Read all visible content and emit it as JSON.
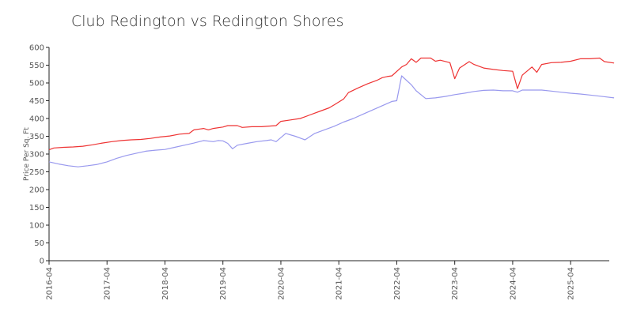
{
  "chart_data": {
    "type": "line",
    "title": "Club Redington vs Redington Shores",
    "xlabel": "",
    "ylabel": "Price Per Sq. Ft",
    "ylim": [
      0,
      600
    ],
    "yticks": [
      0,
      50,
      100,
      150,
      200,
      250,
      300,
      350,
      400,
      450,
      500,
      550,
      600
    ],
    "xlim": [
      "2016-04",
      "2025-12"
    ],
    "xticks": [
      "2016-04",
      "2017-04",
      "2018-04",
      "2019-04",
      "2020-04",
      "2021-04",
      "2022-04",
      "2023-04",
      "2024-04",
      "2025-04"
    ],
    "grid": false,
    "legend": "none",
    "series": [
      {
        "color": "#ee3333",
        "points": [
          [
            "2016-04",
            312
          ],
          [
            "2016-05",
            317
          ],
          [
            "2016-07",
            319
          ],
          [
            "2016-09",
            320
          ],
          [
            "2016-11",
            322
          ],
          [
            "2017-01",
            326
          ],
          [
            "2017-03",
            331
          ],
          [
            "2017-05",
            335
          ],
          [
            "2017-07",
            338
          ],
          [
            "2017-09",
            340
          ],
          [
            "2017-11",
            341
          ],
          [
            "2018-01",
            344
          ],
          [
            "2018-03",
            348
          ],
          [
            "2018-05",
            351
          ],
          [
            "2018-07",
            356
          ],
          [
            "2018-09",
            358
          ],
          [
            "2018-10",
            368
          ],
          [
            "2018-12",
            372
          ],
          [
            "2019-01",
            368
          ],
          [
            "2019-02",
            372
          ],
          [
            "2019-04",
            376
          ],
          [
            "2019-05",
            380
          ],
          [
            "2019-07",
            380
          ],
          [
            "2019-08",
            375
          ],
          [
            "2019-10",
            377
          ],
          [
            "2019-12",
            377
          ],
          [
            "2020-01",
            378
          ],
          [
            "2020-03",
            380
          ],
          [
            "2020-04",
            392
          ],
          [
            "2020-06",
            396
          ],
          [
            "2020-08",
            400
          ],
          [
            "2020-09",
            405
          ],
          [
            "2020-10",
            410
          ],
          [
            "2020-12",
            420
          ],
          [
            "2021-02",
            430
          ],
          [
            "2021-03",
            438
          ],
          [
            "2021-05",
            455
          ],
          [
            "2021-06",
            473
          ],
          [
            "2021-08",
            486
          ],
          [
            "2021-10",
            498
          ],
          [
            "2021-12",
            508
          ],
          [
            "2022-01",
            515
          ],
          [
            "2022-02",
            518
          ],
          [
            "2022-03",
            520
          ],
          [
            "2022-05",
            545
          ],
          [
            "2022-06",
            552
          ],
          [
            "2022-07",
            568
          ],
          [
            "2022-08",
            558
          ],
          [
            "2022-09",
            570
          ],
          [
            "2022-11",
            570
          ],
          [
            "2022-12",
            561
          ],
          [
            "2023-01",
            564
          ],
          [
            "2023-03",
            557
          ],
          [
            "2023-04",
            512
          ],
          [
            "2023-05",
            542
          ],
          [
            "2023-07",
            560
          ],
          [
            "2023-08",
            552
          ],
          [
            "2023-10",
            542
          ],
          [
            "2023-12",
            538
          ],
          [
            "2024-02",
            535
          ],
          [
            "2024-04",
            533
          ],
          [
            "2024-05",
            484
          ],
          [
            "2024-06",
            522
          ],
          [
            "2024-08",
            545
          ],
          [
            "2024-09",
            530
          ],
          [
            "2024-10",
            552
          ],
          [
            "2024-12",
            557
          ],
          [
            "2025-02",
            558
          ],
          [
            "2025-04",
            561
          ],
          [
            "2025-06",
            568
          ],
          [
            "2025-08",
            568
          ],
          [
            "2025-10",
            570
          ],
          [
            "2025-11",
            560
          ],
          [
            "2026-01",
            556
          ]
        ]
      },
      {
        "color": "#9999ee",
        "points": [
          [
            "2016-04",
            278
          ],
          [
            "2016-06",
            272
          ],
          [
            "2016-08",
            267
          ],
          [
            "2016-10",
            264
          ],
          [
            "2016-12",
            267
          ],
          [
            "2017-02",
            271
          ],
          [
            "2017-04",
            278
          ],
          [
            "2017-06",
            288
          ],
          [
            "2017-08",
            296
          ],
          [
            "2017-10",
            302
          ],
          [
            "2017-12",
            308
          ],
          [
            "2018-02",
            311
          ],
          [
            "2018-04",
            313
          ],
          [
            "2018-06",
            319
          ],
          [
            "2018-08",
            325
          ],
          [
            "2018-10",
            331
          ],
          [
            "2018-12",
            338
          ],
          [
            "2019-02",
            335
          ],
          [
            "2019-03",
            338
          ],
          [
            "2019-04",
            337
          ],
          [
            "2019-05",
            330
          ],
          [
            "2019-06",
            315
          ],
          [
            "2019-07",
            325
          ],
          [
            "2019-09",
            330
          ],
          [
            "2019-11",
            335
          ],
          [
            "2020-01",
            338
          ],
          [
            "2020-02",
            340
          ],
          [
            "2020-03",
            335
          ],
          [
            "2020-05",
            358
          ],
          [
            "2020-07",
            350
          ],
          [
            "2020-09",
            340
          ],
          [
            "2020-11",
            358
          ],
          [
            "2021-01",
            368
          ],
          [
            "2021-03",
            378
          ],
          [
            "2021-05",
            390
          ],
          [
            "2021-07",
            400
          ],
          [
            "2021-09",
            412
          ],
          [
            "2021-11",
            424
          ],
          [
            "2022-01",
            436
          ],
          [
            "2022-03",
            448
          ],
          [
            "2022-04",
            450
          ],
          [
            "2022-05",
            520
          ],
          [
            "2022-07",
            495
          ],
          [
            "2022-08",
            478
          ],
          [
            "2022-10",
            456
          ],
          [
            "2022-12",
            458
          ],
          [
            "2023-02",
            462
          ],
          [
            "2023-04",
            467
          ],
          [
            "2023-06",
            471
          ],
          [
            "2023-08",
            476
          ],
          [
            "2023-10",
            479
          ],
          [
            "2023-12",
            480
          ],
          [
            "2024-02",
            478
          ],
          [
            "2024-04",
            478
          ],
          [
            "2024-05",
            474
          ],
          [
            "2024-06",
            480
          ],
          [
            "2024-08",
            480
          ],
          [
            "2024-10",
            480
          ],
          [
            "2024-12",
            477
          ],
          [
            "2025-02",
            474
          ],
          [
            "2025-04",
            471
          ],
          [
            "2025-06",
            469
          ],
          [
            "2025-08",
            466
          ],
          [
            "2025-10",
            463
          ],
          [
            "2026-01",
            458
          ]
        ]
      }
    ]
  }
}
